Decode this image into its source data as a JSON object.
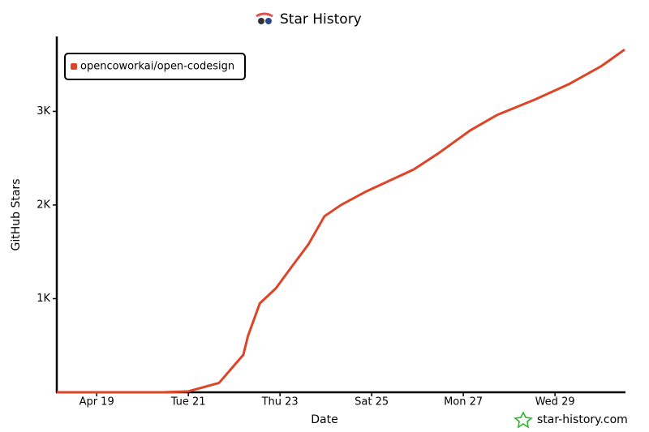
{
  "chart_data": {
    "type": "line",
    "title": "Star History",
    "x_label": "Date",
    "y_label": "GitHub Stars",
    "watermark": "star-history.com",
    "x": [
      18.13,
      20.43,
      21,
      21.67,
      22.2,
      22.3,
      22.56,
      22.91,
      23.27,
      23.62,
      23.97,
      24.33,
      24.86,
      25.39,
      25.92,
      26.45,
      27.16,
      27.73,
      28.58,
      29.3,
      30.0,
      30.52
    ],
    "series": [
      {
        "name": "opencoworkai/open-codesign",
        "color": "#dd4528",
        "values": [
          0,
          0,
          10,
          100,
          400,
          600,
          950,
          1110,
          1350,
          1580,
          1880,
          2000,
          2140,
          2260,
          2380,
          2550,
          2800,
          2960,
          3130,
          3290,
          3480,
          3660
        ]
      }
    ],
    "xlim": [
      18.13,
      30.52
    ],
    "xticks": [
      {
        "value": 19,
        "label": "Apr 19"
      },
      {
        "value": 21,
        "label": "Tue 21"
      },
      {
        "value": 23,
        "label": "Thu 23"
      },
      {
        "value": 25,
        "label": "Sat 25"
      },
      {
        "value": 27,
        "label": "Mon 27"
      },
      {
        "value": 29,
        "label": "Wed 29"
      }
    ],
    "ylim": [
      0,
      3800
    ],
    "yticks": [
      {
        "value": 1000,
        "label": "1K"
      },
      {
        "value": 2000,
        "label": "2K"
      },
      {
        "value": 3000,
        "label": "3K"
      }
    ],
    "legend": "top-left",
    "grid": false
  }
}
